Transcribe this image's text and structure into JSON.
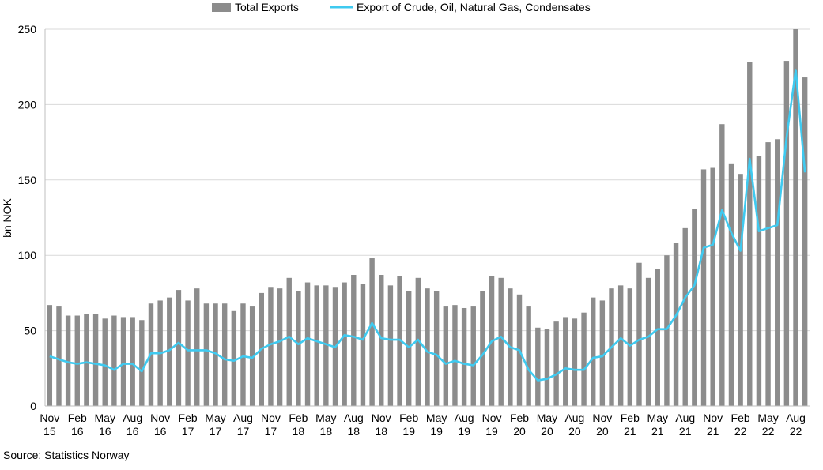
{
  "chart_data": {
    "type": "bar",
    "ylabel": "bn NOK",
    "ylim": [
      0,
      250
    ],
    "yticks": [
      0,
      50,
      100,
      150,
      200,
      250
    ],
    "grid": true,
    "legend_position": "top",
    "tick_labels": [
      {
        "month": "Nov",
        "year": "15",
        "index": 0
      },
      {
        "month": "Feb",
        "year": "16",
        "index": 3
      },
      {
        "month": "May",
        "year": "16",
        "index": 6
      },
      {
        "month": "Aug",
        "year": "16",
        "index": 9
      },
      {
        "month": "Nov",
        "year": "16",
        "index": 12
      },
      {
        "month": "Feb",
        "year": "17",
        "index": 15
      },
      {
        "month": "May",
        "year": "17",
        "index": 18
      },
      {
        "month": "Aug",
        "year": "17",
        "index": 21
      },
      {
        "month": "Nov",
        "year": "17",
        "index": 24
      },
      {
        "month": "Feb",
        "year": "18",
        "index": 27
      },
      {
        "month": "May",
        "year": "18",
        "index": 30
      },
      {
        "month": "Aug",
        "year": "18",
        "index": 33
      },
      {
        "month": "Nov",
        "year": "18",
        "index": 36
      },
      {
        "month": "Feb",
        "year": "19",
        "index": 39
      },
      {
        "month": "May",
        "year": "19",
        "index": 42
      },
      {
        "month": "Aug",
        "year": "19",
        "index": 45
      },
      {
        "month": "Nov",
        "year": "19",
        "index": 48
      },
      {
        "month": "Feb",
        "year": "20",
        "index": 51
      },
      {
        "month": "May",
        "year": "20",
        "index": 54
      },
      {
        "month": "Aug",
        "year": "20",
        "index": 57
      },
      {
        "month": "Nov",
        "year": "20",
        "index": 60
      },
      {
        "month": "Feb",
        "year": "21",
        "index": 63
      },
      {
        "month": "May",
        "year": "21",
        "index": 66
      },
      {
        "month": "Aug",
        "year": "21",
        "index": 69
      },
      {
        "month": "Nov",
        "year": "21",
        "index": 72
      },
      {
        "month": "Feb",
        "year": "22",
        "index": 75
      },
      {
        "month": "May",
        "year": "22",
        "index": 78
      },
      {
        "month": "Aug",
        "year": "22",
        "index": 81
      }
    ],
    "series": [
      {
        "name": "Total Exports",
        "kind": "bar",
        "color": "#8c8c8c",
        "values": [
          67,
          66,
          60,
          60,
          61,
          61,
          58,
          60,
          59,
          59,
          57,
          68,
          70,
          72,
          77,
          70,
          78,
          68,
          68,
          68,
          63,
          68,
          66,
          75,
          79,
          78,
          85,
          76,
          82,
          80,
          80,
          79,
          82,
          87,
          81,
          98,
          87,
          80,
          86,
          76,
          85,
          78,
          76,
          66,
          67,
          65,
          66,
          76,
          86,
          85,
          78,
          74,
          66,
          52,
          51,
          56,
          59,
          58,
          62,
          72,
          70,
          78,
          80,
          78,
          95,
          85,
          91,
          100,
          108,
          118,
          131,
          157,
          158,
          187,
          161,
          154,
          228,
          166,
          175,
          177,
          229,
          250,
          218
        ]
      },
      {
        "name": "Export of Crude, Oil, Natural Gas, Condensates",
        "kind": "line",
        "color": "#3fcaf0",
        "values": [
          33,
          31,
          29,
          28,
          29,
          28,
          27,
          24,
          28,
          28,
          23,
          35,
          35,
          37,
          42,
          37,
          37,
          37,
          35,
          31,
          30,
          33,
          32,
          38,
          41,
          43,
          46,
          41,
          45,
          43,
          41,
          39,
          47,
          46,
          44,
          55,
          45,
          44,
          44,
          39,
          44,
          36,
          34,
          28,
          30,
          28,
          27,
          34,
          43,
          46,
          39,
          37,
          24,
          17,
          18,
          21,
          25,
          24,
          24,
          32,
          33,
          39,
          45,
          40,
          44,
          46,
          51,
          51,
          60,
          72,
          80,
          105,
          107,
          130,
          115,
          103,
          164,
          116,
          118,
          120,
          178,
          223,
          155
        ]
      }
    ]
  },
  "source": "Source: Statistics Norway"
}
